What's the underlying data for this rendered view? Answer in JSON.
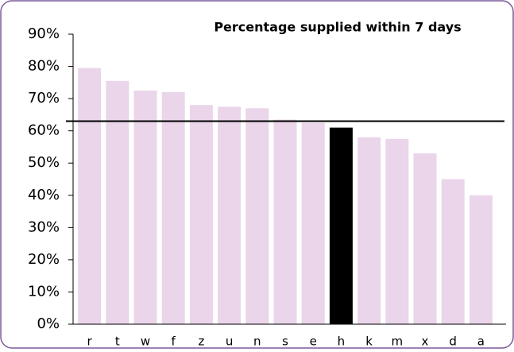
{
  "chart_data": {
    "type": "bar",
    "title": "Percentage supplied within 7 days",
    "categories": [
      "r",
      "t",
      "w",
      "f",
      "z",
      "u",
      "n",
      "s",
      "e",
      "h",
      "k",
      "m",
      "x",
      "d",
      "a"
    ],
    "values": [
      79.5,
      75.5,
      72.5,
      72,
      68,
      67.5,
      67,
      63.5,
      62.5,
      61,
      58,
      57.5,
      53,
      45,
      40
    ],
    "color": "#ead5ea",
    "highlight": "h",
    "highlight_color": "#000000",
    "reference_line": 63,
    "ylim": [
      0,
      90
    ],
    "yticks": [
      {
        "value": 0,
        "label": "0%"
      },
      {
        "value": 10,
        "label": "10%"
      },
      {
        "value": 20,
        "label": "20%"
      },
      {
        "value": 30,
        "label": "30%"
      },
      {
        "value": 40,
        "label": "40%"
      },
      {
        "value": 50,
        "label": "50%"
      },
      {
        "value": 60,
        "label": "60%"
      },
      {
        "value": 70,
        "label": "70%"
      },
      {
        "value": 80,
        "label": "80%"
      },
      {
        "value": 90,
        "label": "90%"
      }
    ],
    "grid": false
  }
}
